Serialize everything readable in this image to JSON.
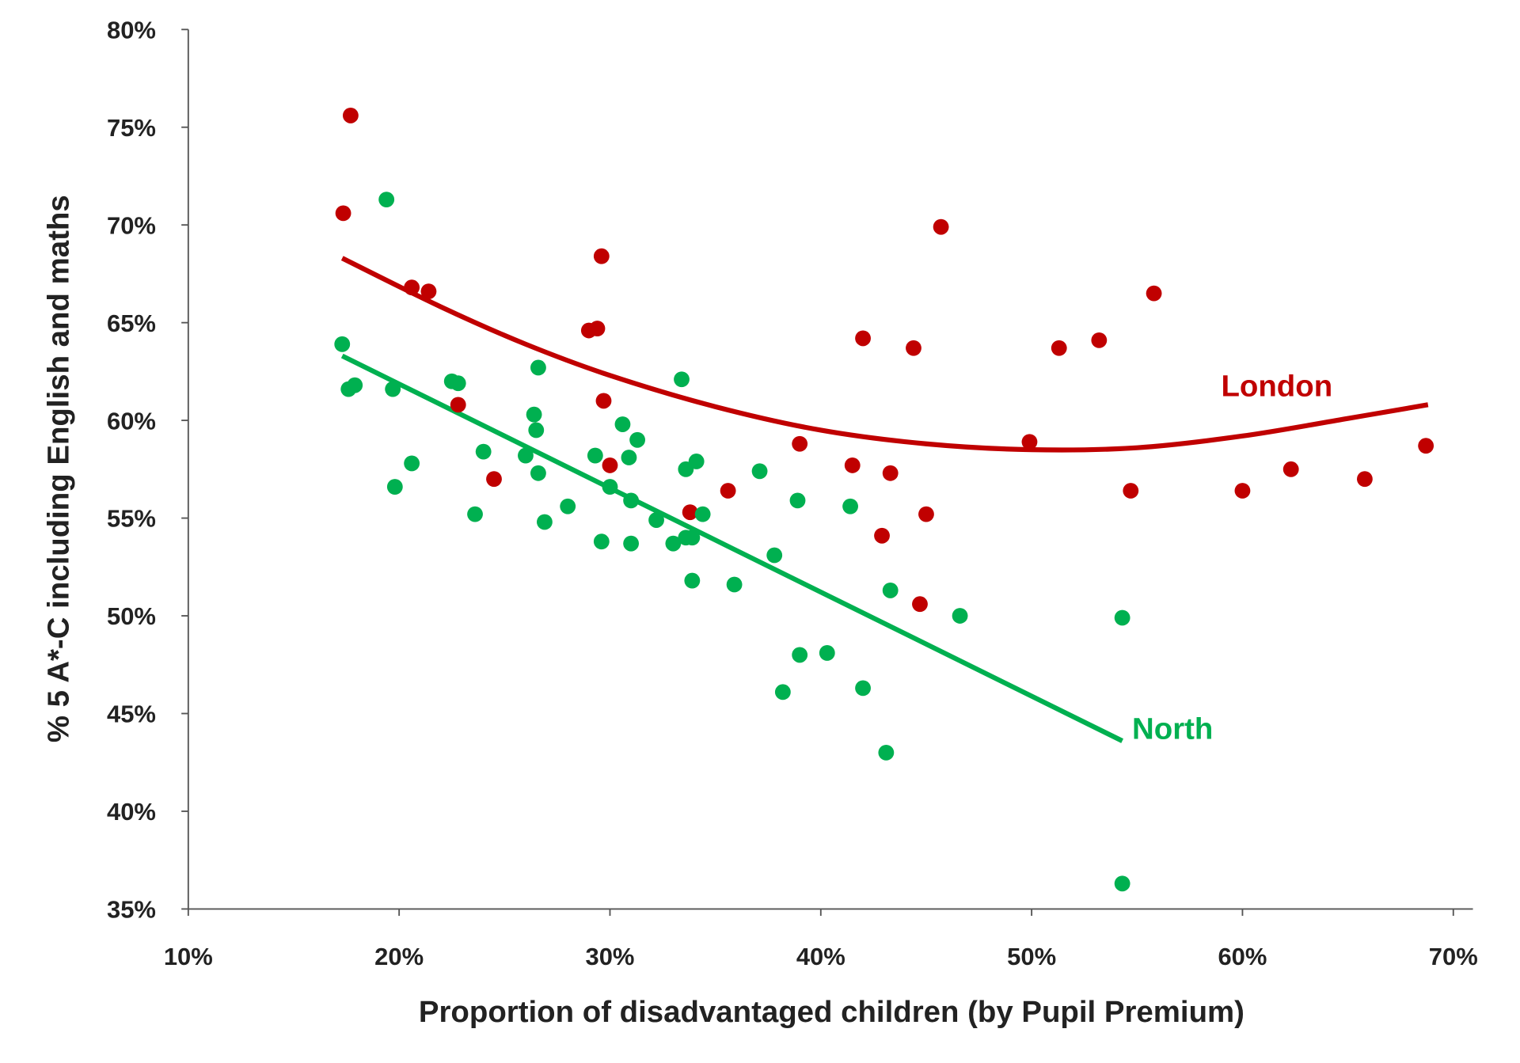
{
  "chart_data": {
    "type": "scatter",
    "title": "",
    "xlabel": "Proportion of disadvantaged children (by Pupil Premium)",
    "ylabel": "% 5 A*-C including English and maths",
    "xlim": [
      10,
      70
    ],
    "ylim": [
      35,
      80
    ],
    "x_ticks": [
      "10%",
      "20%",
      "30%",
      "40%",
      "50%",
      "60%",
      "70%"
    ],
    "y_ticks": [
      "35%",
      "40%",
      "45%",
      "50%",
      "55%",
      "60%",
      "65%",
      "70%",
      "75%",
      "80%"
    ],
    "grid": false,
    "series": [
      {
        "name": "London",
        "color": "#c00000",
        "points": [
          [
            17.35,
            70.6
          ],
          [
            17.7,
            75.6
          ],
          [
            20.6,
            66.8
          ],
          [
            21.4,
            66.6
          ],
          [
            22.8,
            60.8
          ],
          [
            24.5,
            57.0
          ],
          [
            29.0,
            64.6
          ],
          [
            29.4,
            64.7
          ],
          [
            29.6,
            68.4
          ],
          [
            29.7,
            61.0
          ],
          [
            30.0,
            57.7
          ],
          [
            33.8,
            55.3
          ],
          [
            35.6,
            56.4
          ],
          [
            39.0,
            58.8
          ],
          [
            41.5,
            57.7
          ],
          [
            42.0,
            64.2
          ],
          [
            42.9,
            54.1
          ],
          [
            43.3,
            57.3
          ],
          [
            44.4,
            63.7
          ],
          [
            44.7,
            50.6
          ],
          [
            45.0,
            55.2
          ],
          [
            45.7,
            69.9
          ],
          [
            49.9,
            58.9
          ],
          [
            51.3,
            63.7
          ],
          [
            53.2,
            64.1
          ],
          [
            54.7,
            56.4
          ],
          [
            55.8,
            66.5
          ],
          [
            60.0,
            56.4
          ],
          [
            62.3,
            57.5
          ],
          [
            65.8,
            57.0
          ],
          [
            68.7,
            58.7
          ]
        ],
        "trendline": {
          "type": "polynomial",
          "points": [
            [
              17.3,
              68.3
            ],
            [
              22,
              65.8
            ],
            [
              26,
              63.9
            ],
            [
              30,
              62.3
            ],
            [
              35,
              60.7
            ],
            [
              40,
              59.5
            ],
            [
              45,
              58.8
            ],
            [
              50,
              58.5
            ],
            [
              55,
              58.6
            ],
            [
              60,
              59.2
            ],
            [
              65,
              60.1
            ],
            [
              68.8,
              60.8
            ]
          ]
        }
      },
      {
        "name": "North",
        "color": "#00b050",
        "points": [
          [
            17.3,
            63.9
          ],
          [
            17.6,
            61.6
          ],
          [
            17.9,
            61.8
          ],
          [
            19.4,
            71.3
          ],
          [
            19.7,
            61.6
          ],
          [
            19.8,
            56.6
          ],
          [
            20.6,
            57.8
          ],
          [
            22.5,
            62.0
          ],
          [
            22.8,
            61.9
          ],
          [
            23.6,
            55.2
          ],
          [
            24.0,
            58.4
          ],
          [
            26.0,
            58.2
          ],
          [
            26.4,
            60.3
          ],
          [
            26.5,
            59.5
          ],
          [
            26.6,
            62.7
          ],
          [
            26.6,
            57.3
          ],
          [
            26.9,
            54.8
          ],
          [
            28.0,
            55.6
          ],
          [
            29.3,
            58.2
          ],
          [
            29.6,
            53.8
          ],
          [
            30.0,
            56.6
          ],
          [
            30.6,
            59.8
          ],
          [
            30.9,
            58.1
          ],
          [
            31.0,
            55.9
          ],
          [
            31.0,
            53.7
          ],
          [
            31.3,
            59.0
          ],
          [
            32.2,
            54.9
          ],
          [
            33.0,
            53.7
          ],
          [
            33.4,
            62.1
          ],
          [
            33.6,
            54.0
          ],
          [
            33.6,
            57.5
          ],
          [
            33.9,
            54.0
          ],
          [
            33.9,
            51.8
          ],
          [
            34.1,
            57.9
          ],
          [
            34.4,
            55.2
          ],
          [
            35.9,
            51.6
          ],
          [
            37.1,
            57.4
          ],
          [
            37.8,
            53.1
          ],
          [
            38.2,
            46.1
          ],
          [
            38.9,
            55.9
          ],
          [
            39.0,
            48.0
          ],
          [
            40.3,
            48.1
          ],
          [
            41.4,
            55.6
          ],
          [
            42.0,
            46.3
          ],
          [
            43.1,
            43.0
          ],
          [
            43.3,
            51.3
          ],
          [
            46.6,
            50.0
          ],
          [
            54.3,
            49.9
          ],
          [
            54.3,
            36.3
          ]
        ],
        "trendline": {
          "type": "linear",
          "points": [
            [
              17.3,
              63.3
            ],
            [
              54.3,
              43.6
            ]
          ]
        }
      }
    ]
  }
}
